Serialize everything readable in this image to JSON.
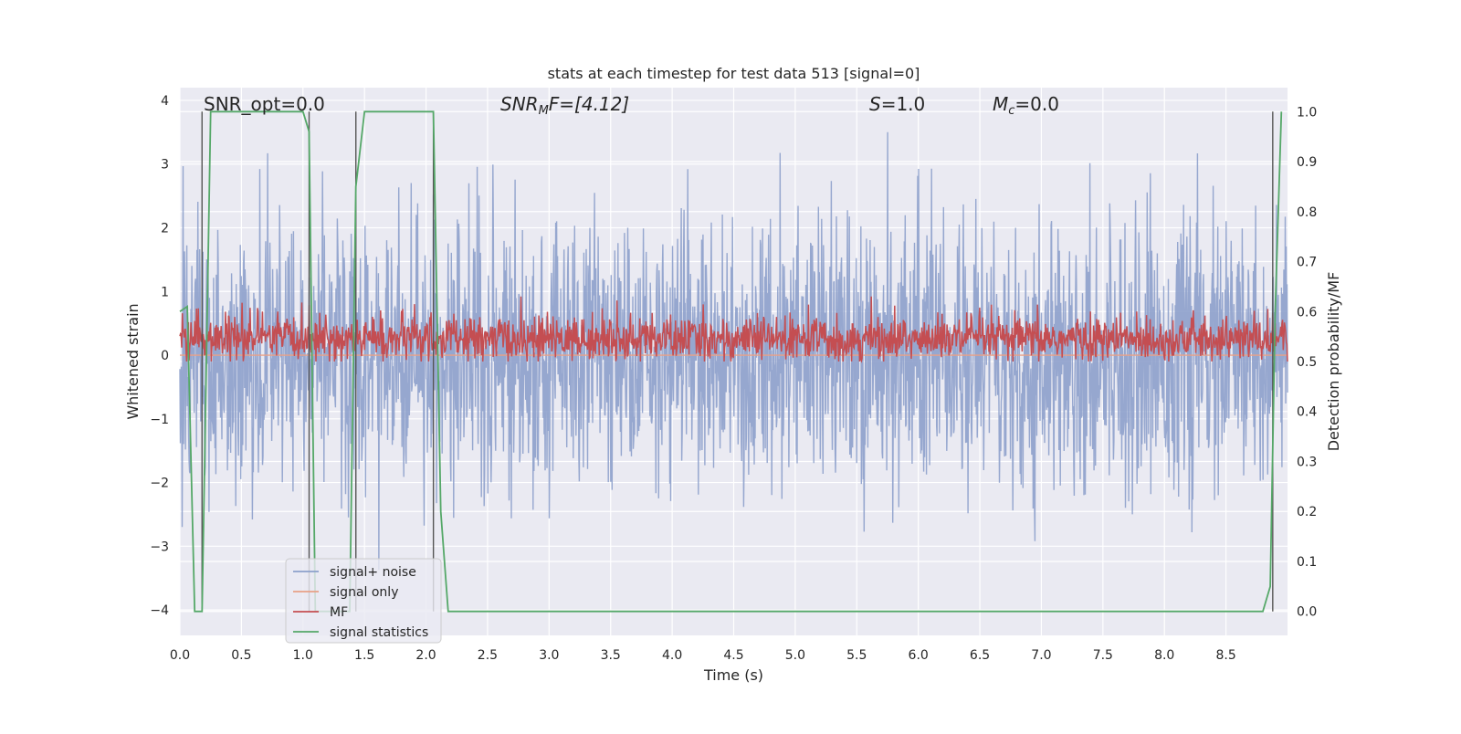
{
  "chart_data": {
    "type": "line",
    "title": "stats at each timestep for test data 513 [signal=0]",
    "xlabel": "Time (s)",
    "ylabel": "Whitened strain",
    "ylabel_right": "Detection probability/MF",
    "xlim": [
      0,
      9.0
    ],
    "ylim": [
      -4.4,
      4.2
    ],
    "ylim_right": [
      -0.048,
      1.048
    ],
    "xticks": [
      "0.0",
      "0.5",
      "1.0",
      "1.5",
      "2.0",
      "2.5",
      "3.0",
      "3.5",
      "4.0",
      "4.5",
      "5.0",
      "5.5",
      "6.0",
      "6.5",
      "7.0",
      "7.5",
      "8.0",
      "8.5"
    ],
    "yticks": [
      "4",
      "3",
      "2",
      "1",
      "0",
      "−1",
      "−2",
      "−3",
      "−4"
    ],
    "yticks_right": [
      "1.0",
      "0.9",
      "0.8",
      "0.7",
      "0.6",
      "0.5",
      "0.4",
      "0.3",
      "0.2",
      "0.1",
      "0.0"
    ],
    "grid": true,
    "legend_position": "lower-left",
    "annotations": {
      "snr_opt": "SNR_opt=0.0",
      "snr_mf_italic": "SNR",
      "snr_mf_sub": "M",
      "snr_mf_rest": "F=[4.12]",
      "s_italic": "S",
      "s_rest": "=1.0",
      "mc_italic": "M",
      "mc_sub": "c",
      "mc_rest": "=0.0"
    },
    "vertical_markers_x": [
      0.18,
      1.05,
      1.43,
      2.06,
      8.88
    ],
    "series": [
      {
        "name": "signal+ noise",
        "color": "#8da0cb",
        "kind": "noise",
        "approx_range": [
          -4.0,
          3.5
        ]
      },
      {
        "name": "signal only",
        "color": "#e8a087",
        "kind": "flat",
        "values_y": 0.0
      },
      {
        "name": "MF",
        "color": "#c44e52",
        "kind": "noise_band",
        "approx_range_right": [
          0.5,
          0.63
        ]
      },
      {
        "name": "signal statistics",
        "color": "#55a868",
        "axis": "right",
        "x": [
          0.0,
          0.06,
          0.12,
          0.18,
          0.25,
          0.3,
          0.6,
          1.0,
          1.05,
          1.1,
          1.38,
          1.43,
          1.5,
          1.6,
          2.0,
          2.06,
          2.12,
          2.18,
          3.0,
          5.0,
          7.0,
          8.8,
          8.86,
          8.9,
          8.95
        ],
        "y": [
          0.6,
          0.61,
          0.0,
          0.0,
          1.0,
          1.0,
          1.0,
          1.0,
          0.96,
          0.0,
          0.0,
          0.85,
          1.0,
          1.0,
          1.0,
          1.0,
          0.2,
          0.0,
          0.0,
          0.0,
          0.0,
          0.0,
          0.05,
          0.6,
          1.0
        ]
      }
    ]
  }
}
